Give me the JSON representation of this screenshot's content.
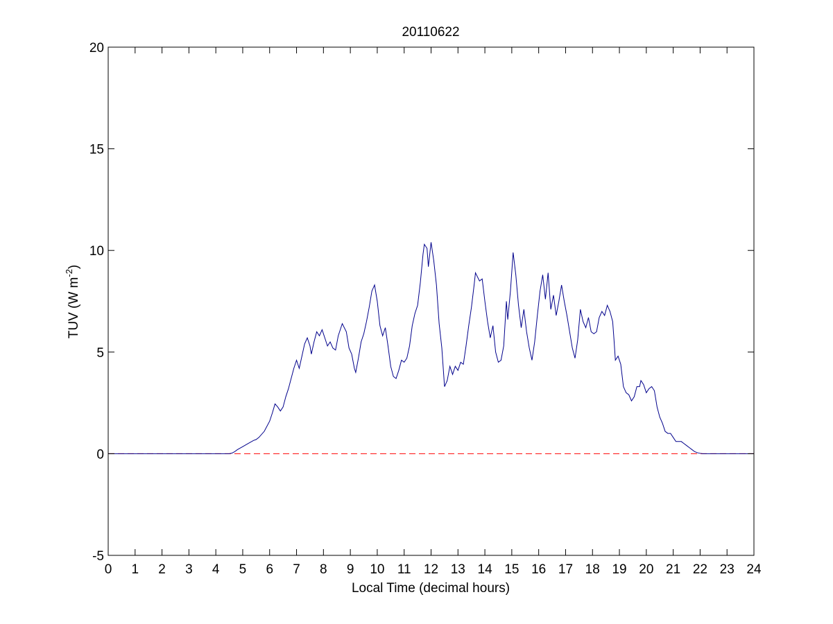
{
  "chart_data": {
    "type": "line",
    "title": "20110622",
    "xlabel": "Local Time (decimal hours)",
    "ylabel": "TUV (W m",
    "ylabel_superscript": "-2",
    "ylabel_close": ")",
    "xlim": [
      0,
      24
    ],
    "ylim": [
      -5,
      20
    ],
    "x_ticks": [
      0,
      1,
      2,
      3,
      4,
      5,
      6,
      7,
      8,
      9,
      10,
      11,
      12,
      13,
      14,
      15,
      16,
      17,
      18,
      19,
      20,
      21,
      22,
      23,
      24
    ],
    "y_ticks": [
      -5,
      0,
      5,
      10,
      15,
      20
    ],
    "grid": false,
    "legend": "none",
    "series": [
      {
        "color": "#00008b",
        "style": "solid",
        "points": [
          [
            0,
            0
          ],
          [
            4.5,
            0
          ],
          [
            4.6,
            0.03
          ],
          [
            4.7,
            0.1
          ],
          [
            4.8,
            0.2
          ],
          [
            5.0,
            0.35
          ],
          [
            5.2,
            0.5
          ],
          [
            5.4,
            0.65
          ],
          [
            5.5,
            0.7
          ],
          [
            5.6,
            0.8
          ],
          [
            5.8,
            1.1
          ],
          [
            6.0,
            1.6
          ],
          [
            6.1,
            2.0
          ],
          [
            6.2,
            2.45
          ],
          [
            6.3,
            2.3
          ],
          [
            6.4,
            2.1
          ],
          [
            6.5,
            2.3
          ],
          [
            6.6,
            2.8
          ],
          [
            6.7,
            3.2
          ],
          [
            6.8,
            3.7
          ],
          [
            6.9,
            4.2
          ],
          [
            7.0,
            4.6
          ],
          [
            7.1,
            4.2
          ],
          [
            7.2,
            4.8
          ],
          [
            7.3,
            5.4
          ],
          [
            7.4,
            5.7
          ],
          [
            7.5,
            5.3
          ],
          [
            7.55,
            4.9
          ],
          [
            7.65,
            5.5
          ],
          [
            7.75,
            6.0
          ],
          [
            7.85,
            5.8
          ],
          [
            7.95,
            6.1
          ],
          [
            8.05,
            5.7
          ],
          [
            8.15,
            5.3
          ],
          [
            8.25,
            5.5
          ],
          [
            8.35,
            5.2
          ],
          [
            8.45,
            5.1
          ],
          [
            8.55,
            5.8
          ],
          [
            8.65,
            6.2
          ],
          [
            8.7,
            6.4
          ],
          [
            8.85,
            6.0
          ],
          [
            8.95,
            5.2
          ],
          [
            9.05,
            4.9
          ],
          [
            9.15,
            4.2
          ],
          [
            9.2,
            4.0
          ],
          [
            9.3,
            4.7
          ],
          [
            9.4,
            5.5
          ],
          [
            9.5,
            5.9
          ],
          [
            9.6,
            6.5
          ],
          [
            9.7,
            7.2
          ],
          [
            9.8,
            8.0
          ],
          [
            9.9,
            8.3
          ],
          [
            10.0,
            7.5
          ],
          [
            10.1,
            6.3
          ],
          [
            10.2,
            5.8
          ],
          [
            10.3,
            6.2
          ],
          [
            10.4,
            5.3
          ],
          [
            10.5,
            4.3
          ],
          [
            10.6,
            3.8
          ],
          [
            10.7,
            3.7
          ],
          [
            10.8,
            4.1
          ],
          [
            10.9,
            4.6
          ],
          [
            11.0,
            4.5
          ],
          [
            11.1,
            4.7
          ],
          [
            11.2,
            5.3
          ],
          [
            11.3,
            6.3
          ],
          [
            11.4,
            6.9
          ],
          [
            11.5,
            7.3
          ],
          [
            11.6,
            8.4
          ],
          [
            11.7,
            9.8
          ],
          [
            11.75,
            10.3
          ],
          [
            11.85,
            10.1
          ],
          [
            11.9,
            9.2
          ],
          [
            12.0,
            10.4
          ],
          [
            12.1,
            9.5
          ],
          [
            12.2,
            8.3
          ],
          [
            12.3,
            6.4
          ],
          [
            12.4,
            5.2
          ],
          [
            12.5,
            3.3
          ],
          [
            12.6,
            3.6
          ],
          [
            12.7,
            4.3
          ],
          [
            12.8,
            3.9
          ],
          [
            12.9,
            4.3
          ],
          [
            13.0,
            4.1
          ],
          [
            13.1,
            4.5
          ],
          [
            13.2,
            4.4
          ],
          [
            13.3,
            5.3
          ],
          [
            13.4,
            6.3
          ],
          [
            13.5,
            7.2
          ],
          [
            13.6,
            8.3
          ],
          [
            13.65,
            8.9
          ],
          [
            13.8,
            8.5
          ],
          [
            13.9,
            8.6
          ],
          [
            14.0,
            7.5
          ],
          [
            14.1,
            6.5
          ],
          [
            14.2,
            5.7
          ],
          [
            14.3,
            6.3
          ],
          [
            14.4,
            5.0
          ],
          [
            14.5,
            4.5
          ],
          [
            14.6,
            4.6
          ],
          [
            14.7,
            5.3
          ],
          [
            14.8,
            7.5
          ],
          [
            14.85,
            6.6
          ],
          [
            14.95,
            8.0
          ],
          [
            15.05,
            9.9
          ],
          [
            15.15,
            8.8
          ],
          [
            15.25,
            7.3
          ],
          [
            15.35,
            6.2
          ],
          [
            15.45,
            7.1
          ],
          [
            15.55,
            6.0
          ],
          [
            15.65,
            5.2
          ],
          [
            15.75,
            4.6
          ],
          [
            15.85,
            5.5
          ],
          [
            15.95,
            6.8
          ],
          [
            16.05,
            8.0
          ],
          [
            16.15,
            8.8
          ],
          [
            16.25,
            7.6
          ],
          [
            16.35,
            8.9
          ],
          [
            16.45,
            7.1
          ],
          [
            16.55,
            7.8
          ],
          [
            16.65,
            6.8
          ],
          [
            16.75,
            7.5
          ],
          [
            16.85,
            8.3
          ],
          [
            16.95,
            7.5
          ],
          [
            17.05,
            6.8
          ],
          [
            17.15,
            6.0
          ],
          [
            17.25,
            5.2
          ],
          [
            17.35,
            4.7
          ],
          [
            17.45,
            5.6
          ],
          [
            17.55,
            7.1
          ],
          [
            17.65,
            6.5
          ],
          [
            17.75,
            6.2
          ],
          [
            17.85,
            6.7
          ],
          [
            17.95,
            6.0
          ],
          [
            18.05,
            5.9
          ],
          [
            18.15,
            6.0
          ],
          [
            18.25,
            6.7
          ],
          [
            18.35,
            7.0
          ],
          [
            18.45,
            6.8
          ],
          [
            18.55,
            7.3
          ],
          [
            18.65,
            7.0
          ],
          [
            18.75,
            6.5
          ],
          [
            18.8,
            5.6
          ],
          [
            18.85,
            4.6
          ],
          [
            18.95,
            4.8
          ],
          [
            19.05,
            4.4
          ],
          [
            19.15,
            3.3
          ],
          [
            19.25,
            3.0
          ],
          [
            19.35,
            2.9
          ],
          [
            19.45,
            2.6
          ],
          [
            19.55,
            2.8
          ],
          [
            19.65,
            3.3
          ],
          [
            19.75,
            3.3
          ],
          [
            19.8,
            3.6
          ],
          [
            19.9,
            3.4
          ],
          [
            20.0,
            3.0
          ],
          [
            20.1,
            3.2
          ],
          [
            20.2,
            3.3
          ],
          [
            20.3,
            3.1
          ],
          [
            20.4,
            2.3
          ],
          [
            20.5,
            1.8
          ],
          [
            20.6,
            1.5
          ],
          [
            20.7,
            1.1
          ],
          [
            20.8,
            1.0
          ],
          [
            20.9,
            1.0
          ],
          [
            21.0,
            0.8
          ],
          [
            21.1,
            0.6
          ],
          [
            21.2,
            0.6
          ],
          [
            21.3,
            0.6
          ],
          [
            21.4,
            0.5
          ],
          [
            21.5,
            0.4
          ],
          [
            21.6,
            0.3
          ],
          [
            21.7,
            0.2
          ],
          [
            21.8,
            0.1
          ],
          [
            21.9,
            0.05
          ],
          [
            22.0,
            0.02
          ],
          [
            22.1,
            0
          ],
          [
            24,
            0
          ]
        ]
      },
      {
        "color": "#ff0000",
        "style": "dashed",
        "points": [
          [
            0,
            0
          ],
          [
            24,
            0
          ]
        ]
      }
    ]
  }
}
